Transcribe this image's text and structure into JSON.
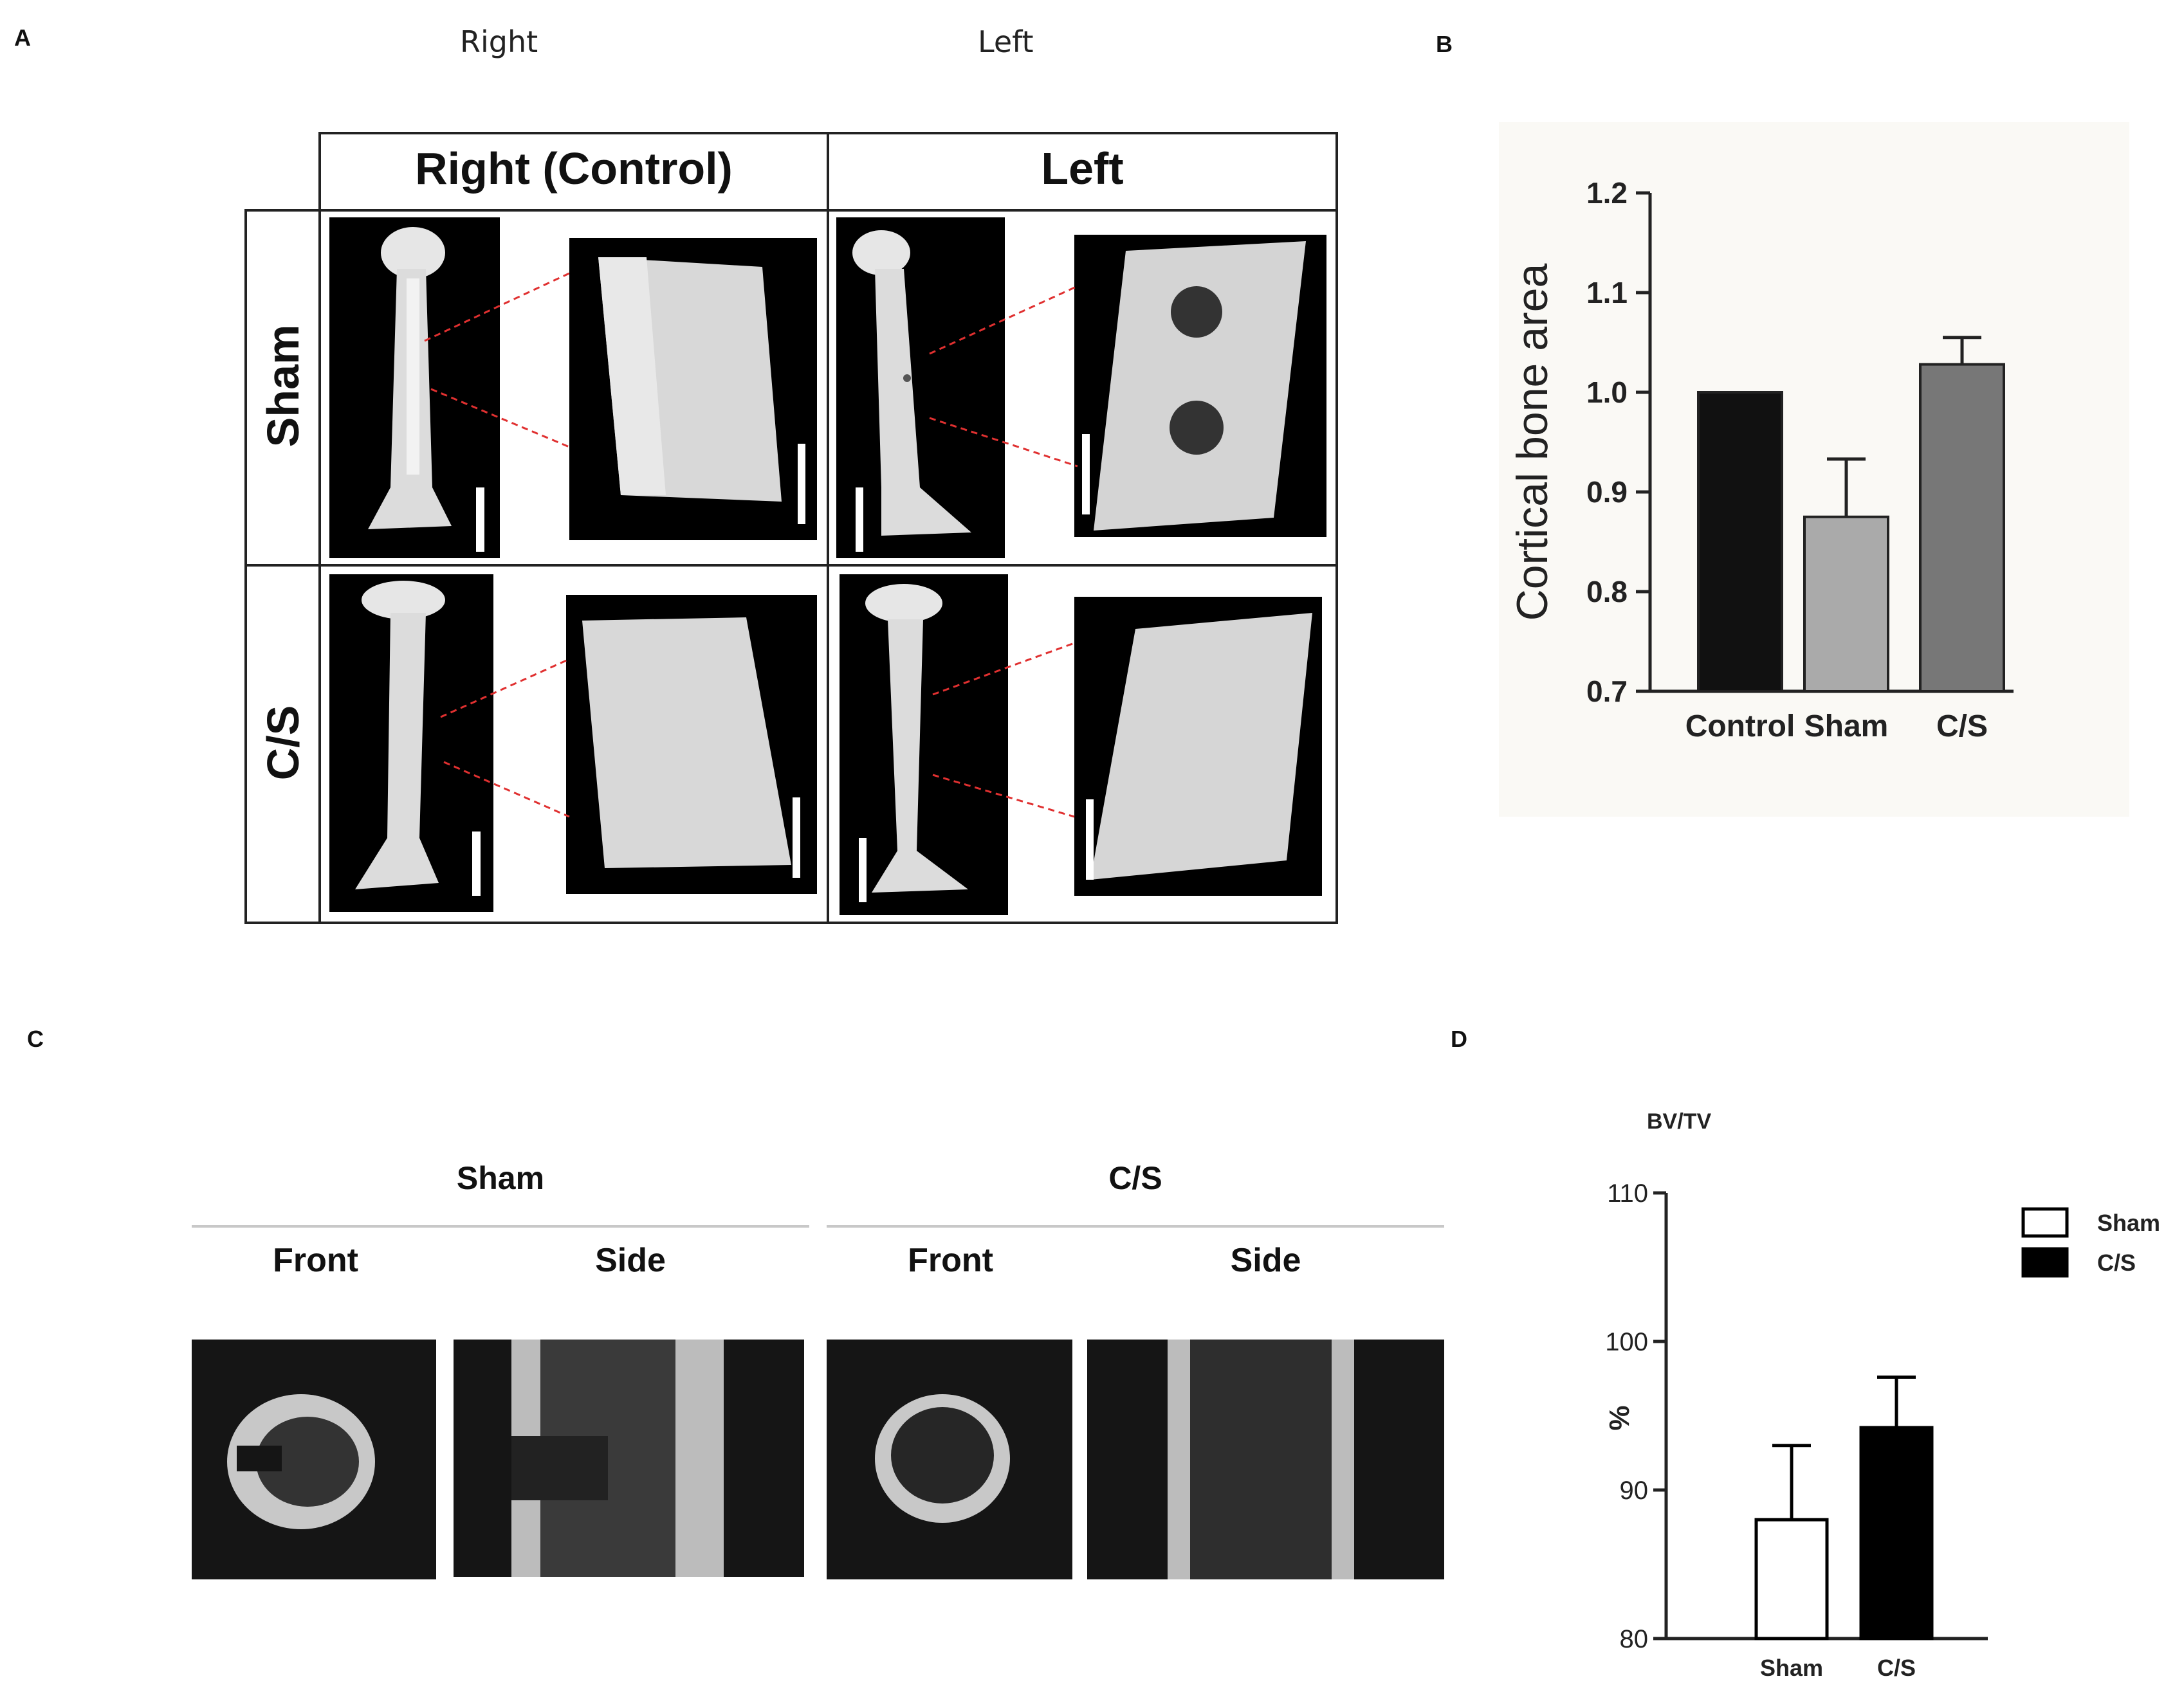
{
  "panelA": {
    "letter": "A",
    "top_labels": {
      "right": "Right",
      "left": "Left"
    },
    "col_headers": [
      "Right (Control)",
      "Left"
    ],
    "row_labels": [
      "Sham",
      "C/S"
    ]
  },
  "panelB": {
    "letter": "B",
    "colors": {
      "control": "#111111",
      "sham": "#aaaaaa",
      "cs": "#777777",
      "bg": "#faf9f5"
    }
  },
  "panelC": {
    "letter": "C",
    "groups": [
      "Sham",
      "C/S"
    ],
    "views": [
      "Front",
      "Side",
      "Front",
      "Side"
    ]
  },
  "panelD": {
    "letter": "D",
    "colors": {
      "sham": "#ffffff",
      "cs": "#000000"
    }
  },
  "chart_data": [
    {
      "id": "B",
      "type": "bar",
      "categories": [
        "Control",
        "Sham",
        "C/S"
      ],
      "values": [
        1.0,
        0.875,
        1.028
      ],
      "errors": [
        0.0,
        0.058,
        0.027
      ],
      "ylabel": "Cortical bone area",
      "ylim": [
        0.7,
        1.2
      ],
      "yticks": [
        "0.7",
        "0.8",
        "0.9",
        "1.0",
        "1.1",
        "1.2"
      ],
      "legend": "none",
      "grid": false
    },
    {
      "id": "D",
      "type": "bar",
      "title": "BV/TV",
      "categories": [
        "Sham",
        "C/S"
      ],
      "values": [
        88.0,
        94.2
      ],
      "errors": [
        5.0,
        3.4
      ],
      "ylabel": "%",
      "ylim": [
        80,
        110
      ],
      "yticks": [
        "80",
        "90",
        "100",
        "110"
      ],
      "legend_entries": [
        "Sham",
        "C/S"
      ],
      "legend": "right",
      "grid": false
    }
  ]
}
